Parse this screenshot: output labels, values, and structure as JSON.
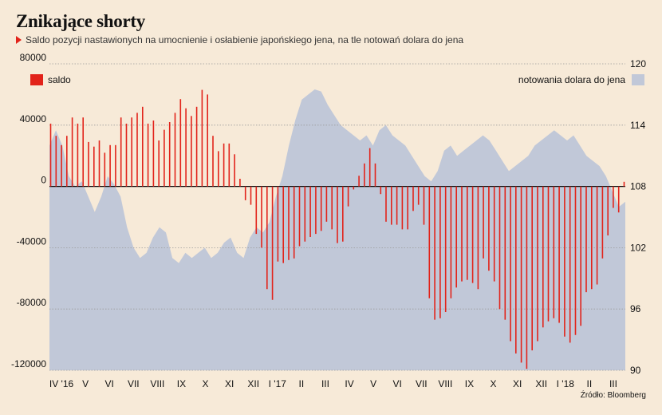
{
  "header": {
    "title": "Znikające shorty",
    "subtitle": "Saldo pozycji nastawionych na umocnienie i osłabienie japońskiego jena, na tle notowań dolara do jena"
  },
  "source": "Źródło: Bloomberg",
  "colors": {
    "background": "#f7ead8",
    "bars": "#e2231a",
    "area": "#c1c8d8",
    "grid": "#9a9a9a"
  },
  "chart_data": {
    "type": "bar",
    "legend": {
      "bars": "saldo",
      "area": "notowania dolara do jena",
      "placement": "top"
    },
    "left_axis": {
      "range": [
        -120000,
        80000
      ],
      "ticks": [
        "80000",
        "40000",
        "0",
        "-40000",
        "-80000",
        "-120000"
      ]
    },
    "right_axis": {
      "range": [
        90,
        120
      ],
      "ticks": [
        "120",
        "114",
        "108",
        "102",
        "96",
        "90"
      ]
    },
    "x_ticks": [
      "IV '16",
      "V",
      "VI",
      "VII",
      "VIII",
      "IX",
      "X",
      "XI",
      "XII",
      "I '17",
      "II",
      "III",
      "IV",
      "V",
      "VI",
      "VII",
      "VIII",
      "IX",
      "X",
      "XI",
      "XII",
      "I '18",
      "II",
      "III"
    ],
    "series": [
      {
        "name": "saldo",
        "kind": "bar",
        "values": [
          41000,
          33000,
          27000,
          33000,
          45000,
          41000,
          45000,
          29000,
          26000,
          30000,
          22000,
          27000,
          27000,
          45000,
          41000,
          45000,
          48000,
          52000,
          41000,
          43000,
          30000,
          37000,
          42000,
          48000,
          57000,
          51000,
          46000,
          52000,
          63000,
          60000,
          33000,
          23000,
          28000,
          28000,
          21000,
          5000,
          -9000,
          -12000,
          -31000,
          -40000,
          -67000,
          -74000,
          -49000,
          -50000,
          -48000,
          -47000,
          -39000,
          -36000,
          -33000,
          -31000,
          -29000,
          -23000,
          -28000,
          -37000,
          -36000,
          -13000,
          -2000,
          7000,
          15000,
          25000,
          15000,
          -5000,
          -23000,
          -25000,
          -25000,
          -28000,
          -28000,
          -16000,
          -12000,
          -25000,
          -73000,
          -87000,
          -86000,
          -82000,
          -73000,
          -66000,
          -62000,
          -61000,
          -63000,
          -67000,
          -47000,
          -55000,
          -62000,
          -80000,
          -87000,
          -101000,
          -109000,
          -115000,
          -119000,
          -107000,
          -101000,
          -92000,
          -88000,
          -86000,
          -89000,
          -98000,
          -102000,
          -97000,
          -91000,
          -69000,
          -67000,
          -64000,
          -47000,
          -32000,
          -14000,
          -17000,
          3000
        ]
      },
      {
        "name": "notowania dolara do jena",
        "kind": "area",
        "points": [
          [
            0,
            112
          ],
          [
            2,
            113.5
          ],
          [
            4,
            112
          ],
          [
            6,
            109
          ],
          [
            8,
            108
          ],
          [
            10,
            108.5
          ],
          [
            12,
            107
          ],
          [
            14,
            105.5
          ],
          [
            16,
            107
          ],
          [
            18,
            109
          ],
          [
            20,
            108.2
          ],
          [
            22,
            107
          ],
          [
            24,
            104
          ],
          [
            26,
            102
          ],
          [
            28,
            101
          ],
          [
            30,
            101.5
          ],
          [
            32,
            103
          ],
          [
            34,
            104
          ],
          [
            36,
            103.5
          ],
          [
            38,
            101
          ],
          [
            40,
            100.5
          ],
          [
            42,
            101.5
          ],
          [
            44,
            101
          ],
          [
            46,
            101.5
          ],
          [
            48,
            102
          ],
          [
            50,
            101
          ],
          [
            52,
            101.5
          ],
          [
            54,
            102.5
          ],
          [
            56,
            103
          ],
          [
            58,
            101.5
          ],
          [
            60,
            101
          ],
          [
            62,
            103
          ],
          [
            64,
            104
          ],
          [
            66,
            103.5
          ],
          [
            68,
            104.5
          ],
          [
            70,
            107
          ],
          [
            72,
            109
          ],
          [
            74,
            112
          ],
          [
            76,
            114.5
          ],
          [
            78,
            116.5
          ],
          [
            80,
            117
          ],
          [
            82,
            117.5
          ],
          [
            84,
            117.3
          ],
          [
            86,
            116
          ],
          [
            88,
            115
          ],
          [
            90,
            114
          ],
          [
            92,
            113.5
          ],
          [
            94,
            113
          ],
          [
            96,
            112.5
          ],
          [
            98,
            113
          ],
          [
            100,
            112
          ],
          [
            102,
            113.5
          ],
          [
            104,
            114
          ],
          [
            106,
            113
          ],
          [
            108,
            112.5
          ],
          [
            110,
            112
          ],
          [
            112,
            111
          ],
          [
            114,
            110
          ],
          [
            116,
            109
          ],
          [
            118,
            108.5
          ],
          [
            120,
            109.5
          ],
          [
            122,
            111.5
          ],
          [
            124,
            112
          ],
          [
            126,
            111
          ],
          [
            128,
            111.5
          ],
          [
            130,
            112
          ],
          [
            132,
            112.5
          ],
          [
            134,
            113
          ],
          [
            136,
            112.5
          ],
          [
            138,
            111.5
          ],
          [
            140,
            110.5
          ],
          [
            142,
            109.5
          ],
          [
            144,
            110
          ],
          [
            146,
            110.5
          ],
          [
            148,
            111
          ],
          [
            150,
            112
          ],
          [
            152,
            112.5
          ],
          [
            154,
            113
          ],
          [
            156,
            113.5
          ],
          [
            158,
            113
          ],
          [
            160,
            112.5
          ],
          [
            162,
            113
          ],
          [
            164,
            112
          ],
          [
            166,
            111
          ],
          [
            168,
            110.5
          ],
          [
            170,
            110
          ],
          [
            172,
            109
          ],
          [
            174,
            107.5
          ],
          [
            176,
            106
          ],
          [
            178,
            106.5
          ]
        ],
        "xlim": [
          0,
          178
        ]
      }
    ]
  }
}
